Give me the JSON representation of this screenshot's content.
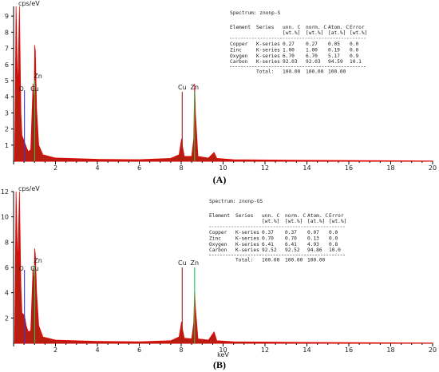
{
  "chart_data": [
    {
      "type": "line",
      "caption": "(A)",
      "ylabel": "cps/eV",
      "xlabel": "",
      "xlim": [
        0,
        20
      ],
      "ylim": [
        0,
        9.6
      ],
      "x_ticks": [
        "2",
        "4",
        "6",
        "8",
        "10",
        "12",
        "14",
        "16",
        "18",
        "20"
      ],
      "y_ticks": [
        "1",
        "2",
        "3",
        "4",
        "5",
        "6",
        "7",
        "8",
        "9"
      ],
      "series": [
        {
          "values": [
            [
              0.05,
              0
            ],
            [
              0.12,
              9.6
            ],
            [
              0.2,
              4.2
            ],
            [
              0.28,
              9.6
            ],
            [
              0.35,
              3.0
            ],
            [
              0.4,
              1.6
            ],
            [
              0.52,
              1.2
            ],
            [
              0.6,
              0.9
            ],
            [
              0.7,
              0.6
            ],
            [
              0.82,
              0.7
            ],
            [
              0.93,
              4.8
            ],
            [
              0.98,
              3.2
            ],
            [
              1.01,
              7.2
            ],
            [
              1.04,
              6.8
            ],
            [
              1.1,
              3.2
            ],
            [
              1.2,
              1.0
            ],
            [
              1.4,
              0.4
            ],
            [
              2.0,
              0.2
            ],
            [
              4.0,
              0.12
            ],
            [
              6.0,
              0.1
            ],
            [
              7.5,
              0.18
            ],
            [
              7.9,
              0.4
            ],
            [
              8.02,
              1.4
            ],
            [
              8.05,
              1.0
            ],
            [
              8.15,
              0.3
            ],
            [
              8.5,
              0.3
            ],
            [
              8.6,
              1.4
            ],
            [
              8.64,
              4.8
            ],
            [
              8.68,
              3.0
            ],
            [
              8.8,
              0.3
            ],
            [
              9.3,
              0.2
            ],
            [
              9.57,
              0.55
            ],
            [
              9.7,
              0.18
            ],
            [
              10.5,
              0.1
            ],
            [
              14.0,
              0.06
            ],
            [
              20.0,
              0.02
            ]
          ]
        }
      ],
      "peak_lines": [
        {
          "label": "O",
          "x": 0.52,
          "y": 4.4
        },
        {
          "label": "Zn",
          "x": 1.01,
          "y": 5.0
        },
        {
          "label": "Cu",
          "x": 0.93,
          "y": 4.4
        },
        {
          "label": "Cu",
          "x": 8.05,
          "y": 4.3
        },
        {
          "label": "Zn",
          "x": 8.64,
          "y": 4.3
        }
      ],
      "table": {
        "spectrum": "Spectrum: znonp-S",
        "headers1": [
          "Element",
          "Series",
          "unn. C",
          "norm. C",
          "Atom. C",
          "Error"
        ],
        "headers2": [
          "",
          "",
          "[wt.%]",
          "[wt.%]",
          "[at.%]",
          "[wt.%]"
        ],
        "rows": [
          [
            "Copper",
            "K-series",
            "0.27",
            "0.27",
            "0.05",
            "0.0"
          ],
          [
            "Zinc",
            "K-series",
            "1.00",
            "1.00",
            "0.19",
            "0.0"
          ],
          [
            "Oxygen",
            "K-series",
            "6.70",
            "6.70",
            "5.17",
            "0.9"
          ],
          [
            "Carbon",
            "K-series",
            "92.03",
            "92.03",
            "94.59",
            "10.1"
          ]
        ],
        "total": [
          "Total:",
          "100.00",
          "100.00",
          "100.00"
        ]
      }
    },
    {
      "type": "line",
      "caption": "(B)",
      "ylabel": "cps/eV",
      "xlabel": "keV",
      "xlim": [
        0,
        20
      ],
      "ylim": [
        0,
        12
      ],
      "x_ticks": [
        "2",
        "4",
        "6",
        "8",
        "10",
        "12",
        "14",
        "16",
        "18",
        "20"
      ],
      "y_ticks": [
        "2",
        "4",
        "6",
        "8",
        "10",
        "12"
      ],
      "series": [
        {
          "values": [
            [
              0.05,
              0
            ],
            [
              0.12,
              12
            ],
            [
              0.2,
              6.0
            ],
            [
              0.28,
              12
            ],
            [
              0.35,
              4.5
            ],
            [
              0.4,
              2.4
            ],
            [
              0.52,
              2.2
            ],
            [
              0.6,
              1.4
            ],
            [
              0.7,
              0.9
            ],
            [
              0.82,
              1.0
            ],
            [
              0.93,
              6.0
            ],
            [
              0.98,
              4.5
            ],
            [
              1.01,
              7.5
            ],
            [
              1.04,
              7.0
            ],
            [
              1.1,
              4.0
            ],
            [
              1.2,
              1.4
            ],
            [
              1.4,
              0.5
            ],
            [
              2.0,
              0.25
            ],
            [
              4.0,
              0.15
            ],
            [
              6.0,
              0.12
            ],
            [
              7.5,
              0.2
            ],
            [
              7.9,
              0.5
            ],
            [
              8.02,
              1.7
            ],
            [
              8.05,
              1.2
            ],
            [
              8.15,
              0.4
            ],
            [
              8.5,
              0.35
            ],
            [
              8.6,
              1.6
            ],
            [
              8.64,
              4.1
            ],
            [
              8.68,
              2.8
            ],
            [
              8.8,
              0.35
            ],
            [
              9.3,
              0.25
            ],
            [
              9.57,
              0.9
            ],
            [
              9.7,
              0.2
            ],
            [
              10.5,
              0.12
            ],
            [
              14.0,
              0.07
            ],
            [
              20.0,
              0.02
            ]
          ]
        }
      ],
      "peak_lines": [
        {
          "label": "O",
          "x": 0.52,
          "y": 5.8
        },
        {
          "label": "Zn",
          "x": 1.01,
          "y": 6.2
        },
        {
          "label": "Cu",
          "x": 0.93,
          "y": 5.8
        },
        {
          "label": "Cu",
          "x": 8.05,
          "y": 6.0
        },
        {
          "label": "Zn",
          "x": 8.64,
          "y": 6.0
        }
      ],
      "table": {
        "spectrum": "Spectrum: znonp-GS",
        "headers1": [
          "Element",
          "Series",
          "unn. C",
          "norm. C",
          "Atom. C",
          "Error"
        ],
        "headers2": [
          "",
          "",
          "[wt.%]",
          "[wt.%]",
          "[at.%]",
          "[wt.%]"
        ],
        "rows": [
          [
            "Copper",
            "K-series",
            "0.37",
            "0.37",
            "0.07",
            "0.0"
          ],
          [
            "Zinc",
            "K-series",
            "0.70",
            "0.70",
            "0.13",
            "0.0"
          ],
          [
            "Oxygen",
            "K-series",
            "6.41",
            "6.41",
            "4.93",
            "0.8"
          ],
          [
            "Carbon",
            "K-series",
            "92.52",
            "92.52",
            "94.86",
            "10.0"
          ]
        ],
        "total": [
          "Total:",
          "100.00",
          "100.00",
          "100.00"
        ]
      }
    }
  ],
  "colors": {
    "spectrum_fill": "#b81e10",
    "spectrum_edge": "#ee0000",
    "line_o": "#3a3acf",
    "line_zn": "#22c44a",
    "line_cu": "#a8201a",
    "axis": "#000000",
    "text": "#222222"
  }
}
